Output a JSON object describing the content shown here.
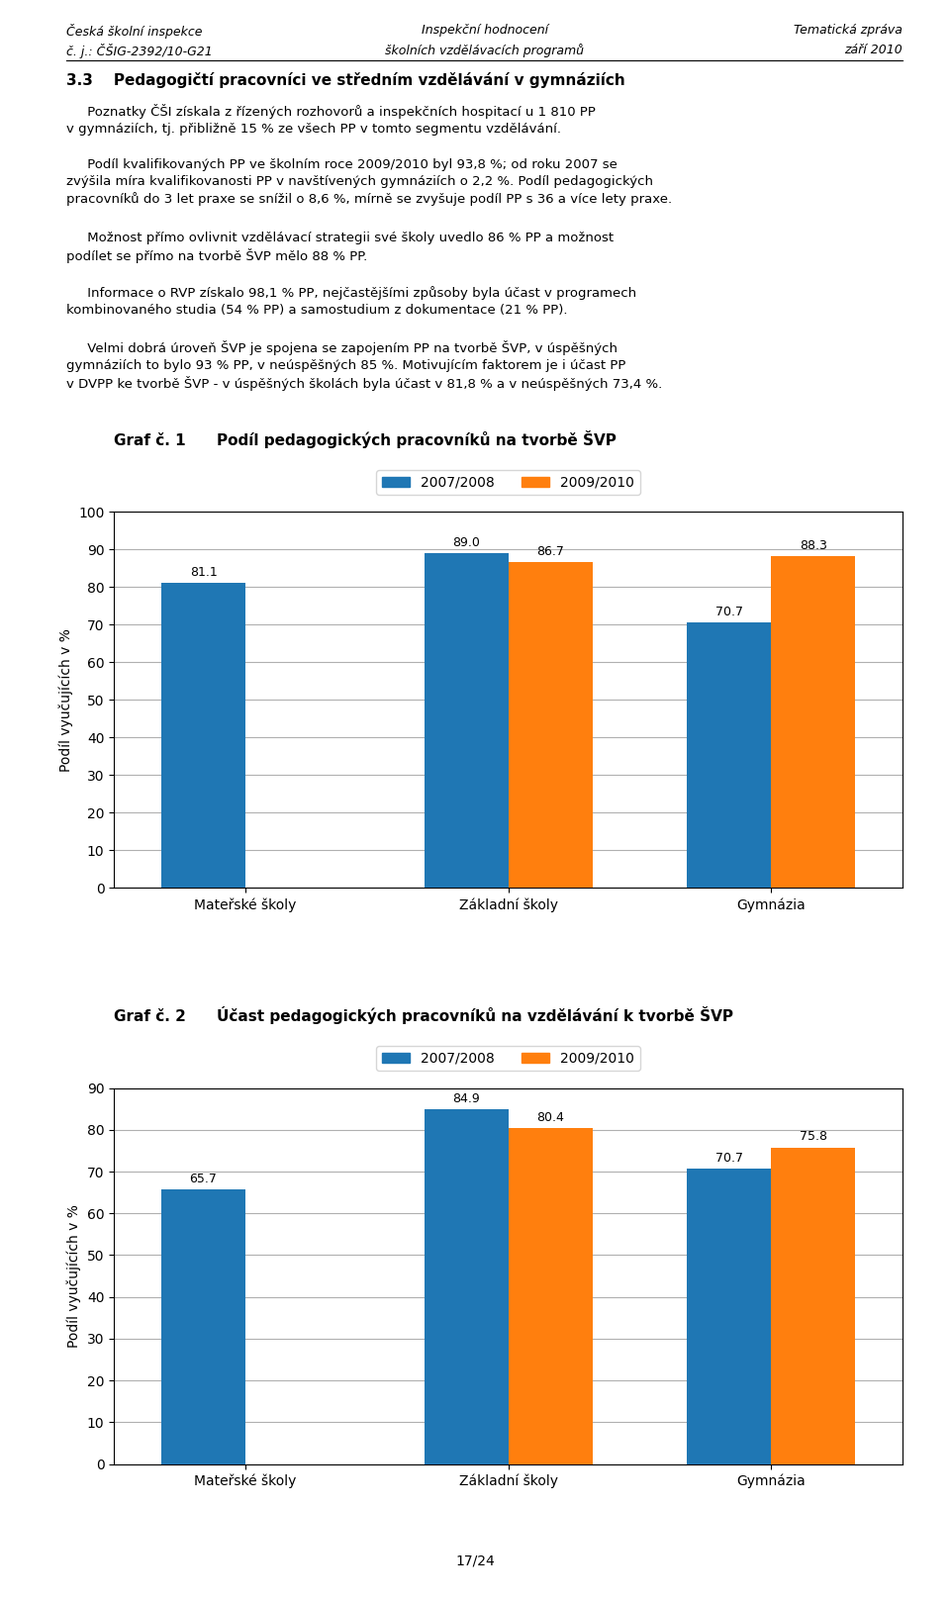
{
  "header": {
    "left": [
      "Česká školní inspekce",
      "č. j.: ČŠIG-2392/10-G21"
    ],
    "center": [
      "Inspekční hodnocení",
      "školních vzdělávacích programů"
    ],
    "right": [
      "Tematická zpráva",
      "září 2010"
    ]
  },
  "section_title": "3.3    Pedagogičtí pracovníci ve středním vzdělávání v gymnáziích",
  "paragraphs": [
    "     Poznatky ČŠI získala z řízených rozhovorů a inspekčních hospitací u 1 810 PP\nv gymnáziích, tj. přibližně 15 % ze všech PP v tomto segmentu vzdělávání.",
    "     Podíl kvalifikovaných PP ve školním roce 2009/2010 byl 93,8 %; od roku 2007 se\nzvýšila míra kvalifikovanosti PP v navštívených gymnáziích o 2,2 %. Podíl pedagogických\npracovníků do 3 let praxe se snížil o 8,6 %, mírně se zvyšuje podíl PP s 36 a více lety praxe.",
    "     Možnost přímo ovlivnit vzdělávací strategii své školy uvedlo 86 % PP a možnost\npodílet se přímo na tvorbě ŠVP mělo 88 % PP.",
    "     Informace o RVP získalo 98,1 % PP, nejčastějšími způsoby byla účast v programech\nkombinovaného studia (54 % PP) a samostudium z dokumentace (21 % PP).",
    "     Velmi dobrá úroveň ŠVP je spojena se zapojením PP na tvorbě ŠVP, v úspěšných\ngymnáziích to bylo 93 % PP, v neúspěšných 85 %. Motivujícím faktorem je i účast PP\nv DVPP ke tvorbě ŠVP - v úspěšných školách byla účast v 81,8 % a v neúspěšných 73,4 %."
  ],
  "footer": "17/24",
  "chart_data": [
    {
      "type": "bar",
      "title": "Graf č. 1",
      "subtitle": "Podíl pedagogických pracovníků na tvorbě ŠVP",
      "ylabel": "Podíl vyučujících v %",
      "categories": [
        "Mateřské školy",
        "Základní školy",
        "Gymnázia"
      ],
      "series": [
        {
          "name": "2007/2008",
          "values": [
            81.1,
            89.0,
            70.7
          ]
        },
        {
          "name": "2009/2010",
          "values": [
            null,
            86.7,
            88.3
          ]
        }
      ],
      "ylim": [
        0,
        100
      ],
      "yticks": [
        0,
        10,
        20,
        30,
        40,
        50,
        60,
        70,
        80,
        90,
        100
      ],
      "grid": true,
      "legend": "upper center",
      "data_labels": true
    },
    {
      "type": "bar",
      "title": "Graf č. 2",
      "subtitle": "Účast pedagogických pracovníků na vzdělávání k tvorbě ŠVP",
      "ylabel": "Podíl vyučujících v %",
      "categories": [
        "Mateřské školy",
        "Základní školy",
        "Gymnázia"
      ],
      "series": [
        {
          "name": "2007/2008",
          "values": [
            65.7,
            84.9,
            70.7
          ]
        },
        {
          "name": "2009/2010",
          "values": [
            null,
            80.4,
            75.8
          ]
        }
      ],
      "ylim": [
        0,
        90
      ],
      "yticks": [
        0,
        10,
        20,
        30,
        40,
        50,
        60,
        70,
        80,
        90
      ],
      "grid": true,
      "legend": "upper center",
      "data_labels": true
    }
  ]
}
